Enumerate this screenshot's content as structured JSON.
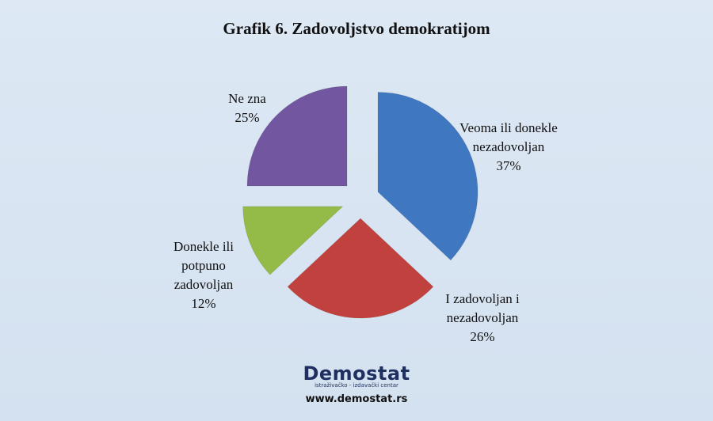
{
  "chart_data": {
    "type": "pie",
    "title": "Grafik 6. Zadovoljstvo demokratijom",
    "categories": [
      "Veoma ili donekle nezadovoljan",
      "I zadovoljan i nezadovoljan",
      "Donekle ili potpuno zadovoljan",
      "Ne zna"
    ],
    "values": [
      37,
      26,
      12,
      25
    ],
    "value_labels": [
      "37%",
      "26%",
      "12%",
      "25%"
    ],
    "colors": [
      "#3f77c0",
      "#c0413d",
      "#94ba47",
      "#7256a0"
    ]
  },
  "logo": {
    "name": "Demostat",
    "tagline": "istraživačko - izdavački centar",
    "url": "www.demostat.rs"
  }
}
